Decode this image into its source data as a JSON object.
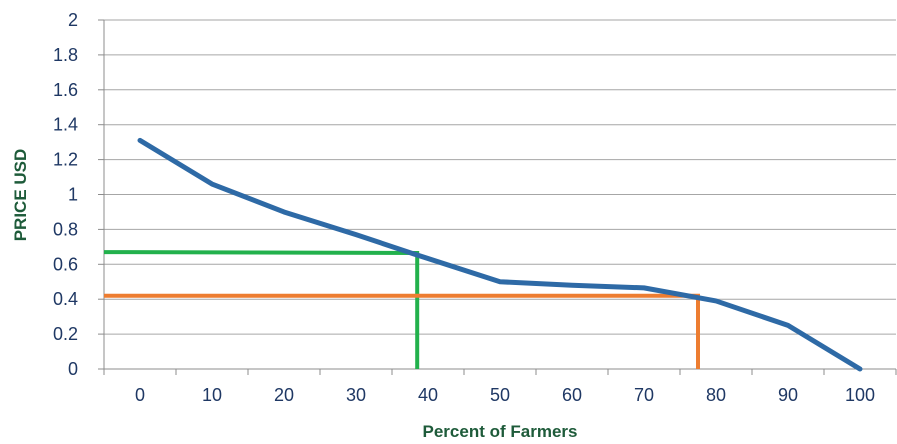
{
  "chart_data": {
    "type": "line",
    "xlabel": "Percent of Farmers",
    "ylabel": "PRICE USD",
    "x_categories": [
      "0",
      "10",
      "20",
      "30",
      "40",
      "50",
      "60",
      "70",
      "80",
      "90",
      "100"
    ],
    "y_ticks": [
      "0",
      "0.2",
      "0.4",
      "0.6",
      "0.8",
      "1",
      "1.2",
      "1.4",
      "1.6",
      "1.8",
      "2"
    ],
    "xlim": [
      0,
      100
    ],
    "ylim": [
      0,
      2
    ],
    "grid": true,
    "series": [
      {
        "color": "#2e6aa6",
        "x": [
          0,
          10,
          20,
          30,
          38,
          50,
          60,
          70,
          80,
          90,
          100
        ],
        "y": [
          1.31,
          1.06,
          0.9,
          0.77,
          0.66,
          0.5,
          0.48,
          0.465,
          0.39,
          0.25,
          0.0
        ]
      }
    ],
    "reference_lines": [
      {
        "color": "#22b14c",
        "x": 38.5,
        "y": 0.665,
        "y_left": 0.67
      },
      {
        "color": "#ed7d31",
        "x": 77.5,
        "y": 0.42,
        "y_left": 0.42
      }
    ]
  }
}
